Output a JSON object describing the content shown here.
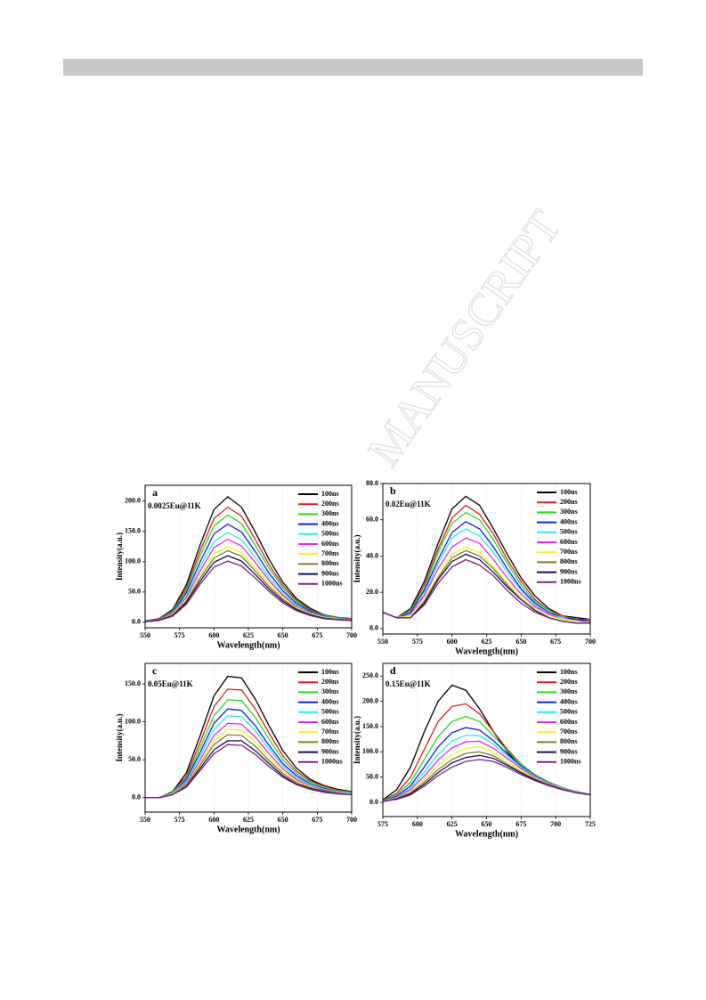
{
  "watermark": "MANUSCRIPT",
  "chart_data": [
    {
      "type": "line",
      "panel_label": "a",
      "annotation": "0.0025Eu@11K",
      "x_label": "Wavelength(nm)",
      "y_label": "Intensity(a.u.)",
      "grid": true,
      "xlim": [
        550,
        700
      ],
      "xticks": [
        550,
        575,
        600,
        625,
        650,
        675,
        700
      ],
      "ylim": [
        -9,
        226
      ],
      "yticks": [
        {
          "value": 0,
          "label": "0.0"
        },
        {
          "value": 50,
          "label": "50.0"
        },
        {
          "value": 100,
          "label": "100.0"
        },
        {
          "value": 150,
          "label": "150.0"
        },
        {
          "value": 200,
          "label": "200.0"
        }
      ],
      "x": [
        550,
        560,
        570,
        580,
        590,
        600,
        610,
        620,
        630,
        640,
        650,
        660,
        670,
        680,
        690,
        700
      ],
      "series": [
        {
          "name": "100ns",
          "color": "#000000",
          "values": [
            2,
            6,
            21,
            62,
            128,
            186,
            207,
            190,
            149,
            104,
            66,
            39,
            23,
            12,
            8,
            6
          ]
        },
        {
          "name": "200ns",
          "color": "#e41a1c",
          "values": [
            2,
            6,
            19,
            57,
            118,
            171,
            190,
            175,
            137,
            95,
            61,
            36,
            21,
            11,
            8,
            6
          ]
        },
        {
          "name": "300ns",
          "color": "#22dd22",
          "values": [
            2,
            5,
            18,
            53,
            110,
            159,
            177,
            163,
            127,
            89,
            57,
            34,
            19,
            11,
            7,
            5
          ]
        },
        {
          "name": "400ns",
          "color": "#1a1aee",
          "values": [
            2,
            5,
            16,
            49,
            100,
            146,
            162,
            149,
            117,
            81,
            52,
            31,
            18,
            10,
            6,
            5
          ]
        },
        {
          "name": "500ns",
          "color": "#22eeee",
          "values": [
            1,
            4,
            15,
            44,
            92,
            133,
            148,
            136,
            107,
            74,
            47,
            28,
            16,
            9,
            6,
            4
          ]
        },
        {
          "name": "600ns",
          "color": "#ee22ee",
          "values": [
            1,
            4,
            14,
            41,
            85,
            123,
            137,
            126,
            99,
            69,
            44,
            26,
            15,
            8,
            5,
            4
          ]
        },
        {
          "name": "700ns",
          "color": "#f2f222",
          "values": [
            1,
            4,
            13,
            38,
            78,
            113,
            125,
            115,
            90,
            63,
            40,
            24,
            14,
            8,
            5,
            4
          ]
        },
        {
          "name": "800ns",
          "color": "#808020",
          "values": [
            1,
            4,
            12,
            35,
            73,
            106,
            118,
            109,
            85,
            59,
            38,
            22,
            13,
            7,
            5,
            4
          ]
        },
        {
          "name": "900ns",
          "color": "#101060",
          "values": [
            1,
            3,
            11,
            33,
            68,
            99,
            110,
            101,
            79,
            55,
            35,
            21,
            12,
            7,
            4,
            3
          ]
        },
        {
          "name": "1000ns",
          "color": "#80207f",
          "values": [
            1,
            3,
            10,
            30,
            63,
            91,
            101,
            93,
            73,
            51,
            32,
            19,
            11,
            6,
            4,
            3
          ]
        }
      ]
    },
    {
      "type": "line",
      "panel_label": "b",
      "annotation": "0.02Eu@11K",
      "x_label": "Wavelength(nm)",
      "y_label": "Intensity(a.u.)",
      "grid": true,
      "xlim": [
        550,
        700
      ],
      "xticks": [
        550,
        575,
        600,
        625,
        650,
        675,
        700
      ],
      "ylim": [
        -3,
        80
      ],
      "yticks": [
        {
          "value": 0,
          "label": "0.0"
        },
        {
          "value": 20,
          "label": "20.0"
        },
        {
          "value": 40,
          "label": "40.0"
        },
        {
          "value": 60,
          "label": "60.0"
        },
        {
          "value": 80,
          "label": "80.0"
        }
      ],
      "x": [
        550,
        560,
        570,
        580,
        590,
        600,
        610,
        620,
        630,
        640,
        650,
        660,
        670,
        680,
        690,
        700
      ],
      "series": [
        {
          "name": "100ns",
          "color": "#000000",
          "values": [
            9,
            6,
            11,
            26,
            47,
            66,
            73,
            68,
            55,
            41,
            28,
            18,
            11,
            7,
            6,
            5
          ]
        },
        {
          "name": "200ns",
          "color": "#e41a1c",
          "values": [
            9,
            6,
            10,
            24,
            44,
            61,
            68,
            63,
            52,
            38,
            26,
            16,
            10,
            7,
            5,
            5
          ]
        },
        {
          "name": "300ns",
          "color": "#22dd22",
          "values": [
            9,
            6,
            10,
            22,
            42,
            58,
            64,
            60,
            49,
            36,
            24,
            15,
            10,
            6,
            5,
            4
          ]
        },
        {
          "name": "400ns",
          "color": "#1a1aee",
          "values": [
            9,
            6,
            9,
            21,
            38,
            53,
            59,
            55,
            45,
            33,
            22,
            14,
            9,
            6,
            5,
            4
          ]
        },
        {
          "name": "500ns",
          "color": "#22eeee",
          "values": [
            9,
            6,
            8,
            19,
            36,
            50,
            55,
            51,
            42,
            31,
            21,
            13,
            8,
            6,
            4,
            4
          ]
        },
        {
          "name": "600ns",
          "color": "#ee22ee",
          "values": [
            9,
            6,
            8,
            18,
            33,
            45,
            50,
            47,
            38,
            28,
            19,
            12,
            8,
            5,
            4,
            4
          ]
        },
        {
          "name": "700ns",
          "color": "#f2f222",
          "values": [
            9,
            6,
            7,
            16,
            29,
            41,
            45,
            42,
            34,
            25,
            17,
            11,
            7,
            5,
            4,
            3
          ]
        },
        {
          "name": "800ns",
          "color": "#808020",
          "values": [
            9,
            6,
            6,
            15,
            28,
            39,
            43,
            40,
            33,
            24,
            16,
            10,
            6,
            4,
            3,
            3
          ]
        },
        {
          "name": "900ns",
          "color": "#101060",
          "values": [
            9,
            6,
            6,
            14,
            27,
            37,
            41,
            38,
            31,
            23,
            16,
            10,
            6,
            4,
            3,
            3
          ]
        },
        {
          "name": "1000ns",
          "color": "#80207f",
          "values": [
            9,
            6,
            6,
            13,
            25,
            34,
            38,
            35,
            29,
            21,
            14,
            9,
            6,
            4,
            3,
            3
          ]
        }
      ]
    },
    {
      "type": "line",
      "panel_label": "c",
      "annotation": "0.05Eu@11K",
      "x_label": "Wavelength(nm)",
      "y_label": "Intensity(a.u.)",
      "grid": true,
      "xlim": [
        550,
        700
      ],
      "xticks": [
        550,
        575,
        600,
        625,
        650,
        675,
        700
      ],
      "ylim": [
        -19,
        177
      ],
      "yticks": [
        {
          "value": 0,
          "label": "0.0"
        },
        {
          "value": 50,
          "label": "50.0"
        },
        {
          "value": 100,
          "label": "100.0"
        },
        {
          "value": 150,
          "label": "150.0"
        }
      ],
      "x": [
        550,
        560,
        570,
        580,
        590,
        600,
        610,
        620,
        630,
        640,
        650,
        660,
        670,
        680,
        690,
        700
      ],
      "series": [
        {
          "name": "100ns",
          "color": "#000000",
          "values": [
            0,
            0,
            8,
            33,
            82,
            134,
            160,
            158,
            130,
            95,
            62,
            39,
            24,
            16,
            11,
            8
          ]
        },
        {
          "name": "200ns",
          "color": "#e41a1c",
          "values": [
            0,
            0,
            7,
            29,
            73,
            120,
            143,
            142,
            117,
            85,
            55,
            35,
            22,
            15,
            10,
            7
          ]
        },
        {
          "name": "300ns",
          "color": "#22dd22",
          "values": [
            0,
            0,
            7,
            26,
            66,
            108,
            129,
            128,
            106,
            77,
            50,
            32,
            20,
            13,
            9,
            7
          ]
        },
        {
          "name": "400ns",
          "color": "#1a1aee",
          "values": [
            0,
            0,
            6,
            24,
            60,
            98,
            117,
            115,
            95,
            69,
            45,
            29,
            18,
            12,
            8,
            6
          ]
        },
        {
          "name": "500ns",
          "color": "#22eeee",
          "values": [
            0,
            0,
            6,
            22,
            55,
            90,
            108,
            107,
            88,
            64,
            42,
            26,
            17,
            11,
            8,
            6
          ]
        },
        {
          "name": "600ns",
          "color": "#ee22ee",
          "values": [
            0,
            0,
            5,
            20,
            50,
            82,
            98,
            97,
            80,
            58,
            38,
            24,
            15,
            10,
            7,
            5
          ]
        },
        {
          "name": "700ns",
          "color": "#f2f222",
          "values": [
            0,
            0,
            5,
            18,
            46,
            75,
            90,
            89,
            74,
            53,
            35,
            22,
            14,
            9,
            6,
            5
          ]
        },
        {
          "name": "800ns",
          "color": "#808020",
          "values": [
            0,
            0,
            4,
            17,
            43,
            70,
            83,
            82,
            68,
            49,
            32,
            20,
            13,
            9,
            6,
            4
          ]
        },
        {
          "name": "900ns",
          "color": "#101060",
          "values": [
            0,
            0,
            4,
            15,
            39,
            63,
            75,
            75,
            62,
            45,
            29,
            18,
            12,
            8,
            5,
            4
          ]
        },
        {
          "name": "1000ns",
          "color": "#80207f",
          "values": [
            0,
            0,
            4,
            14,
            36,
            58,
            70,
            69,
            57,
            41,
            27,
            17,
            11,
            7,
            5,
            4
          ]
        }
      ]
    },
    {
      "type": "line",
      "panel_label": "d",
      "annotation": "0.15Eu@11K",
      "x_label": "Wavelength(nm)",
      "y_label": "Intensity(a.u.)",
      "grid": true,
      "xlim": [
        575,
        725
      ],
      "xticks": [
        575,
        600,
        625,
        650,
        675,
        700,
        725
      ],
      "ylim": [
        -28,
        275
      ],
      "yticks": [
        {
          "value": 0,
          "label": "0.0"
        },
        {
          "value": 50,
          "label": "50.0"
        },
        {
          "value": 100,
          "label": "100.0"
        },
        {
          "value": 150,
          "label": "150.0"
        },
        {
          "value": 200,
          "label": "200.0"
        },
        {
          "value": 250,
          "label": "250.0"
        }
      ],
      "x": [
        575,
        585,
        595,
        605,
        615,
        625,
        635,
        645,
        655,
        665,
        675,
        685,
        695,
        705,
        715,
        725
      ],
      "series": [
        {
          "name": "100ns",
          "color": "#000000",
          "values": [
            5,
            25,
            70,
            140,
            200,
            232,
            222,
            185,
            140,
            100,
            70,
            50,
            37,
            27,
            20,
            15
          ]
        },
        {
          "name": "200ns",
          "color": "#e41a1c",
          "values": [
            4,
            18,
            50,
            105,
            160,
            190,
            195,
            175,
            140,
            105,
            76,
            55,
            40,
            29,
            21,
            16
          ]
        },
        {
          "name": "300ns",
          "color": "#22dd22",
          "values": [
            3,
            15,
            40,
            85,
            130,
            160,
            170,
            160,
            132,
            102,
            75,
            55,
            40,
            29,
            21,
            16
          ]
        },
        {
          "name": "400ns",
          "color": "#1a1aee",
          "values": [
            3,
            12,
            33,
            70,
            110,
            138,
            148,
            143,
            122,
            96,
            72,
            53,
            39,
            28,
            21,
            16
          ]
        },
        {
          "name": "500ns",
          "color": "#22eeee",
          "values": [
            3,
            10,
            28,
            60,
            95,
            122,
            133,
            132,
            115,
            92,
            70,
            52,
            38,
            28,
            20,
            16
          ]
        },
        {
          "name": "600ns",
          "color": "#ee22ee",
          "values": [
            2,
            9,
            25,
            52,
            84,
            108,
            120,
            121,
            107,
            87,
            67,
            50,
            37,
            27,
            20,
            15
          ]
        },
        {
          "name": "700ns",
          "color": "#f2f222",
          "values": [
            2,
            8,
            21,
            45,
            73,
            95,
            107,
            110,
            99,
            81,
            63,
            48,
            36,
            26,
            20,
            15
          ]
        },
        {
          "name": "800ns",
          "color": "#808020",
          "values": [
            2,
            7,
            19,
            40,
            65,
            85,
            97,
            100,
            92,
            76,
            60,
            46,
            35,
            26,
            19,
            15
          ]
        },
        {
          "name": "900ns",
          "color": "#101060",
          "values": [
            2,
            7,
            17,
            36,
            59,
            78,
            89,
            93,
            87,
            73,
            58,
            45,
            34,
            25,
            19,
            15
          ]
        },
        {
          "name": "1000ns",
          "color": "#80207f",
          "values": [
            2,
            6,
            15,
            32,
            53,
            70,
            81,
            85,
            81,
            69,
            55,
            43,
            33,
            25,
            19,
            15
          ]
        }
      ]
    }
  ]
}
